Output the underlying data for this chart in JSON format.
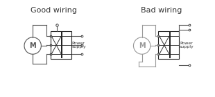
{
  "title_good": "Good wiring",
  "title_bad": "Bad wiring",
  "bg_color": "#ffffff",
  "line_color": "#555555",
  "dark_line": "#222222",
  "text_color": "#333333",
  "motor_bad_color": "#999999",
  "power_supply_text": "Power\nsupply",
  "title_fontsize": 8,
  "label_fontsize": 6
}
